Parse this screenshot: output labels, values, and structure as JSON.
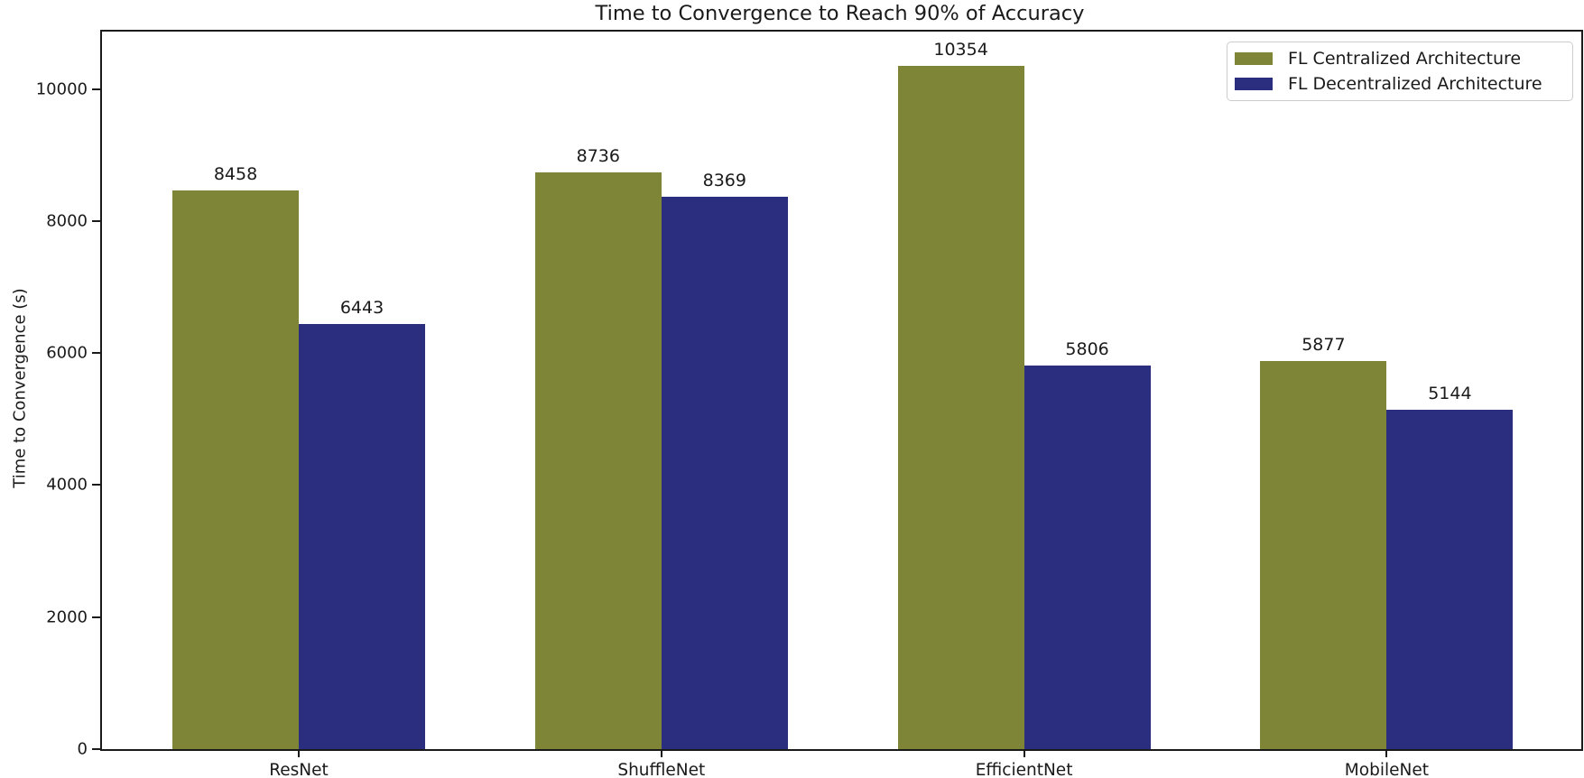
{
  "chart_data": {
    "type": "bar",
    "title": "Time to Convergence to Reach 90% of Accuracy",
    "xlabel": "",
    "ylabel": "Time to Convergence (s)",
    "categories": [
      "ResNet",
      "ShuffleNet",
      "EfficientNet",
      "MobileNet"
    ],
    "series": [
      {
        "name": "FL Centralized Architecture",
        "color": "#7e8536",
        "values": [
          8458,
          8736,
          10354,
          5877
        ]
      },
      {
        "name": "FL Decentralized Architecture",
        "color": "#2b2d7e",
        "values": [
          6443,
          8369,
          5806,
          5144
        ]
      }
    ],
    "ylim": [
      0,
      10870
    ],
    "yticks": [
      0,
      2000,
      4000,
      6000,
      8000,
      10000
    ],
    "bar_value_labels": true,
    "legend_position": "upper right",
    "grid": false
  }
}
